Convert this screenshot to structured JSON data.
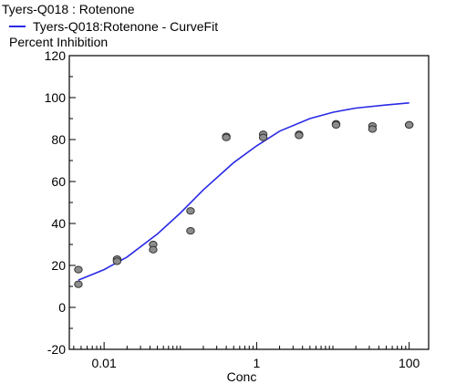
{
  "chart_data": {
    "type": "scatter",
    "title": "Tyers-Q018  : Rotenone",
    "legend": {
      "placement": "top-left",
      "entries": [
        {
          "label": "Tyers-Q018:Rotenone - CurveFit",
          "color": "#2a2ae6"
        }
      ]
    },
    "ylabel": "Percent Inhibition",
    "xlabel": "Conc",
    "x_scale": "log",
    "xlim": [
      0.0035,
      180
    ],
    "ylim": [
      -20,
      120
    ],
    "x_ticks": [
      {
        "value": 0.01,
        "label": "0.01"
      },
      {
        "value": 1,
        "label": "1"
      },
      {
        "value": 100,
        "label": "100"
      }
    ],
    "y_ticks": [
      {
        "value": -20,
        "label": "-20"
      },
      {
        "value": 0,
        "label": "0"
      },
      {
        "value": 20,
        "label": "20"
      },
      {
        "value": 40,
        "label": "40"
      },
      {
        "value": 60,
        "label": "60"
      },
      {
        "value": 80,
        "label": "80"
      },
      {
        "value": 100,
        "label": "100"
      },
      {
        "value": 120,
        "label": "120"
      }
    ],
    "grid": false,
    "points": [
      {
        "x": 0.0046,
        "y": 18
      },
      {
        "x": 0.0046,
        "y": 11
      },
      {
        "x": 0.0148,
        "y": 23
      },
      {
        "x": 0.0148,
        "y": 22
      },
      {
        "x": 0.044,
        "y": 30
      },
      {
        "x": 0.044,
        "y": 27.5
      },
      {
        "x": 0.136,
        "y": 46
      },
      {
        "x": 0.136,
        "y": 36.5
      },
      {
        "x": 0.4,
        "y": 81.5
      },
      {
        "x": 0.4,
        "y": 81
      },
      {
        "x": 1.22,
        "y": 82.5
      },
      {
        "x": 1.22,
        "y": 81
      },
      {
        "x": 3.6,
        "y": 82.5
      },
      {
        "x": 3.6,
        "y": 82
      },
      {
        "x": 11,
        "y": 87.5
      },
      {
        "x": 11,
        "y": 87
      },
      {
        "x": 33,
        "y": 86.5
      },
      {
        "x": 33,
        "y": 85
      },
      {
        "x": 100,
        "y": 87
      },
      {
        "x": 100,
        "y": 87
      }
    ],
    "point_color": "#8c8c8c",
    "curve": {
      "name": "Tyers-Q018:Rotenone - CurveFit",
      "color": "#2a2ae6",
      "x": [
        0.0046,
        0.01,
        0.02,
        0.05,
        0.1,
        0.2,
        0.5,
        1,
        2,
        5,
        10,
        20,
        50,
        100
      ],
      "y": [
        13,
        18,
        24,
        35,
        45,
        56,
        69,
        77,
        84,
        90,
        93,
        95,
        96.5,
        97.5
      ]
    }
  }
}
